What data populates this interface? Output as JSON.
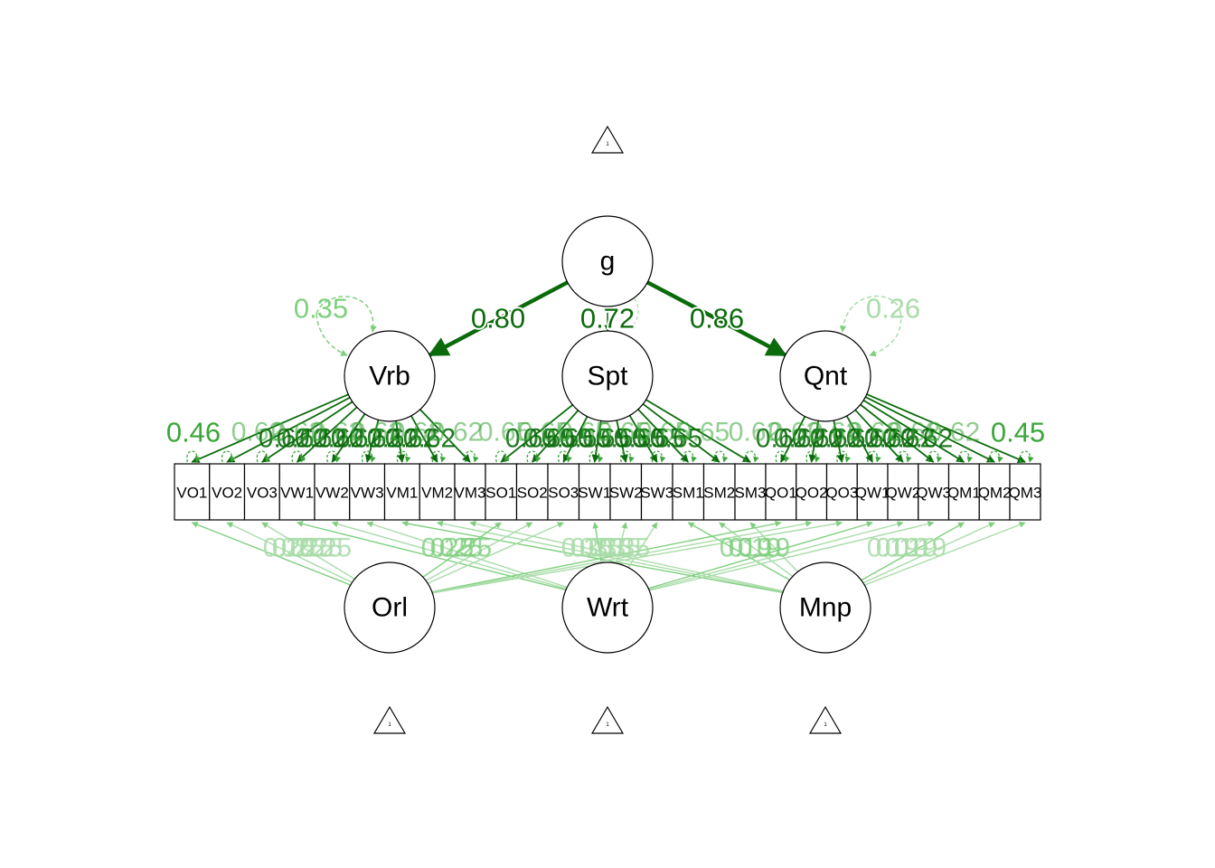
{
  "colors": {
    "strong": "#0b6b0b",
    "medium": "#3aa63a",
    "light": "#7fcf7f",
    "faint": "#a9dca9",
    "stroke": "#000000"
  },
  "general_factor": "g",
  "group_factors": [
    "Vrb",
    "Spt",
    "Qnt"
  ],
  "method_factors": [
    "Orl",
    "Wrt",
    "Mnp"
  ],
  "intercept_label": "1",
  "indicators": [
    "VO1",
    "VO2",
    "VO3",
    "VW1",
    "VW2",
    "VW3",
    "VM1",
    "VM2",
    "VM3",
    "SO1",
    "SO2",
    "SO3",
    "SW1",
    "SW2",
    "SW3",
    "SM1",
    "SM2",
    "SM3",
    "QO1",
    "QO2",
    "QO3",
    "QW1",
    "QW2",
    "QW3",
    "QM1",
    "QM2",
    "QM3"
  ],
  "structural_loadings": [
    {
      "from": "g",
      "to": "Vrb",
      "value": "0.80"
    },
    {
      "from": "g",
      "to": "Spt",
      "value": "0.72"
    },
    {
      "from": "g",
      "to": "Qnt",
      "value": "0.86"
    }
  ],
  "residual_variances": {
    "Vrb": "0.35",
    "Qnt": "0.26"
  },
  "indicator_residual_labels": {
    "left": "0.46",
    "right": "0.45"
  },
  "overlapping_loading_labels": {
    "Vrb": "0.62",
    "Spt": "0.65",
    "Qnt": "0.62",
    "Orl": "0.25",
    "Wrt": "0.35",
    "Mnp": "0.19"
  },
  "loading_label_counts": {
    "Vrb": 9,
    "Spt": 9,
    "Qnt": 9,
    "Orl": 5,
    "Wrt": 5,
    "Mnp": 4
  }
}
